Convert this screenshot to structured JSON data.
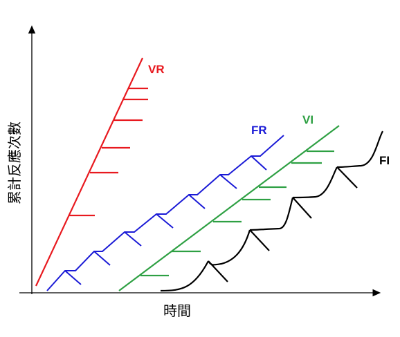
{
  "axes": {
    "ylabel": "累計反應次數",
    "xlabel": "時間"
  },
  "schedules": [
    {
      "id": "vr",
      "label": "VR",
      "color": "#e8191f"
    },
    {
      "id": "fr",
      "label": "FR",
      "color": "#1a1ad6"
    },
    {
      "id": "vi",
      "label": "VI",
      "color": "#2ea043"
    },
    {
      "id": "fi",
      "label": "FI",
      "color": "#000000"
    }
  ]
}
